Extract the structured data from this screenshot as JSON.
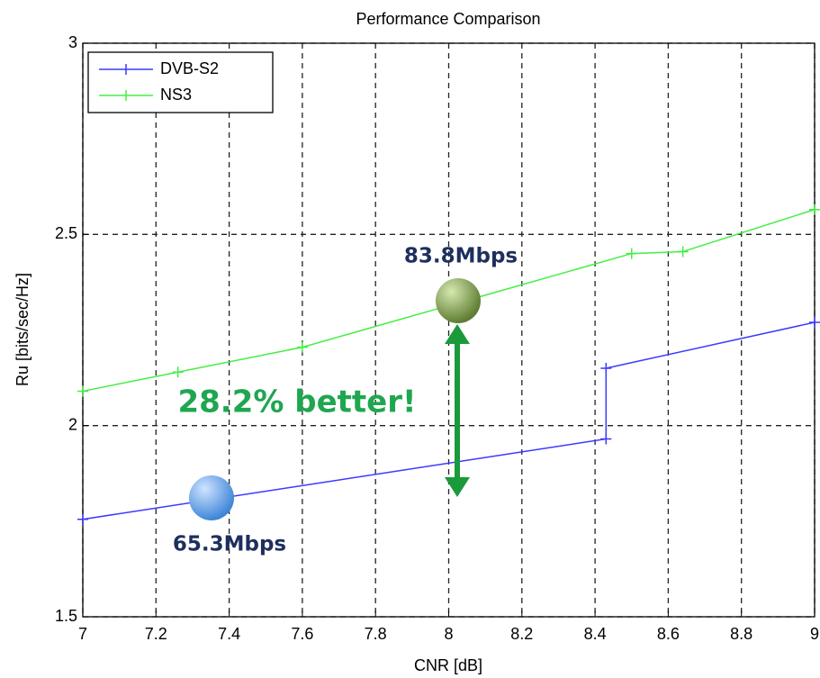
{
  "chart_data": {
    "type": "line",
    "title": "Performance Comparison",
    "x_label": "CNR [dB]",
    "y_label": "Ru [bits/sec/Hz]",
    "xlim": [
      7,
      9
    ],
    "xticks": [
      7,
      7.2,
      7.4,
      7.6,
      7.8,
      8,
      8.2,
      8.4,
      8.6,
      8.8,
      9
    ],
    "ylim": [
      1.5,
      3
    ],
    "yticks": [
      1.5,
      2,
      2.5,
      3
    ],
    "grid": true,
    "legend": "upper left",
    "series": [
      {
        "name": "DVB-S2",
        "color": "#3a3aff",
        "x": [
          7,
          8.43,
          8.43,
          9
        ],
        "values": [
          1.755,
          1.965,
          2.15,
          2.27
        ]
      },
      {
        "name": "NS3",
        "color": "#44ee44",
        "x": [
          7,
          7.26,
          7.6,
          8.5,
          8.64,
          9
        ],
        "values": [
          2.09,
          2.14,
          2.205,
          2.45,
          2.455,
          2.565
        ]
      }
    ],
    "annotations": [
      "83.8Mbps",
      "28.2% better!",
      "65.3Mbps"
    ]
  }
}
